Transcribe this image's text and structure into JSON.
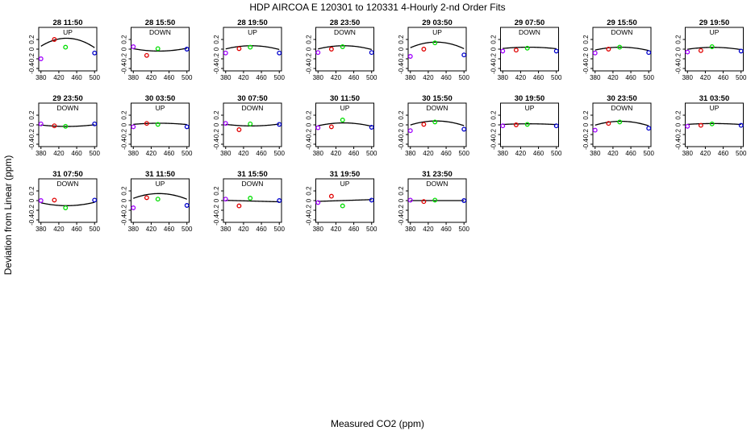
{
  "figure": {
    "title": "HDP   AIRCOA E   120301 to 120331   4-Hourly 2-nd Order Fits",
    "xlabel": "Measured CO2 (ppm)",
    "ylabel": "Deviation from Linear (ppm)"
  },
  "chart_data": {
    "type": "scatter",
    "layout": {
      "rows": 3,
      "cols": 8
    },
    "xlim": [
      375,
      505
    ],
    "ylim": [
      -0.45,
      0.45
    ],
    "xticks": [
      380,
      420,
      460,
      500
    ],
    "yticks": [
      0.2,
      0.0,
      -0.2,
      -0.4
    ],
    "xtick_labels": [
      "380",
      "420",
      "460",
      "500"
    ],
    "ytick_labels": [
      "0.2",
      "0",
      "-0.2",
      "-0.4"
    ],
    "colors": {
      "p1": "#a000ff",
      "p2": "#e00000",
      "p3": "#00dd00",
      "p4": "#0000cc",
      "fit": "#000000"
    },
    "panels": [
      {
        "title": "28 11:50",
        "direction": "UP",
        "points": [
          [
            380,
            -0.2
          ],
          [
            410,
            0.2
          ],
          [
            435,
            0.04
          ],
          [
            500,
            -0.08
          ]
        ],
        "fit": [
          -5e-05,
          0.04375,
          -9.345
        ]
      },
      {
        "title": "28 15:50",
        "direction": "DOWN",
        "points": [
          [
            380,
            0.05
          ],
          [
            410,
            -0.13
          ],
          [
            435,
            0.01
          ],
          [
            500,
            0.0
          ]
        ],
        "fit": [
          1.5e-05,
          -0.01312,
          2.829
        ]
      },
      {
        "title": "28 19:50",
        "direction": "UP",
        "points": [
          [
            380,
            -0.08
          ],
          [
            410,
            0.01
          ],
          [
            435,
            0.04
          ],
          [
            500,
            -0.08
          ]
        ],
        "fit": [
          -2e-05,
          0.0175,
          -3.758
        ]
      },
      {
        "title": "28 23:50",
        "direction": "DOWN",
        "points": [
          [
            380,
            -0.07
          ],
          [
            410,
            0.0
          ],
          [
            435,
            0.05
          ],
          [
            500,
            -0.07
          ]
        ],
        "fit": [
          -2e-05,
          0.0175,
          -3.758
        ]
      },
      {
        "title": "29 03:50",
        "direction": "UP",
        "points": [
          [
            380,
            -0.15
          ],
          [
            410,
            0.0
          ],
          [
            435,
            0.13
          ],
          [
            500,
            -0.12
          ]
        ],
        "fit": [
          -3.5e-05,
          0.03063,
          -6.556
        ]
      },
      {
        "title": "29 07:50",
        "direction": "DOWN",
        "points": [
          [
            380,
            -0.04
          ],
          [
            410,
            -0.02
          ],
          [
            435,
            0.02
          ],
          [
            500,
            -0.04
          ]
        ],
        "fit": [
          -8e-06,
          0.007,
          -1.491
        ]
      },
      {
        "title": "29 15:50",
        "direction": "DOWN",
        "points": [
          [
            380,
            -0.08
          ],
          [
            410,
            0.0
          ],
          [
            435,
            0.04
          ],
          [
            500,
            -0.07
          ]
        ],
        "fit": [
          -1.8e-05,
          0.01575,
          -3.405
        ]
      },
      {
        "title": "29 19:50",
        "direction": "UP",
        "points": [
          [
            380,
            -0.06
          ],
          [
            410,
            -0.03
          ],
          [
            435,
            0.05
          ],
          [
            500,
            -0.04
          ]
        ],
        "fit": [
          -1.2e-05,
          0.0105,
          -2.26
        ]
      },
      {
        "title": "29 23:50",
        "direction": "DOWN",
        "points": [
          [
            380,
            0.02
          ],
          [
            410,
            -0.02
          ],
          [
            435,
            -0.03
          ],
          [
            500,
            0.02
          ]
        ],
        "fit": [
          9e-06,
          -0.007875,
          1.69
        ]
      },
      {
        "title": "30 03:50",
        "direction": "UP",
        "points": [
          [
            380,
            -0.04
          ],
          [
            410,
            0.03
          ],
          [
            435,
            0.01
          ],
          [
            500,
            -0.04
          ]
        ],
        "fit": [
          -7e-06,
          0.006125,
          -1.306
        ]
      },
      {
        "title": "30 07:50",
        "direction": "DOWN",
        "points": [
          [
            380,
            0.03
          ],
          [
            410,
            -0.1
          ],
          [
            435,
            0.02
          ],
          [
            500,
            0.01
          ]
        ],
        "fit": [
          1e-05,
          -0.00875,
          1.892
        ]
      },
      {
        "title": "30 11:50",
        "direction": "UP",
        "points": [
          [
            380,
            -0.06
          ],
          [
            410,
            -0.04
          ],
          [
            435,
            0.1
          ],
          [
            500,
            -0.05
          ]
        ],
        "fit": [
          -1.8e-05,
          0.01575,
          -3.405
        ]
      },
      {
        "title": "30 15:50",
        "direction": "DOWN",
        "points": [
          [
            380,
            -0.12
          ],
          [
            410,
            0.01
          ],
          [
            435,
            0.06
          ],
          [
            500,
            -0.09
          ]
        ],
        "fit": [
          -2.5e-05,
          0.02188,
          -4.707
        ]
      },
      {
        "title": "30 19:50",
        "direction": "UP",
        "points": [
          [
            380,
            -0.02
          ],
          [
            410,
            0.0
          ],
          [
            435,
            0.01
          ],
          [
            500,
            -0.02
          ]
        ],
        "fit": [
          -4e-06,
          0.0035,
          -0.744
        ]
      },
      {
        "title": "30 23:50",
        "direction": "DOWN",
        "points": [
          [
            380,
            -0.11
          ],
          [
            410,
            0.03
          ],
          [
            435,
            0.06
          ],
          [
            500,
            -0.07
          ]
        ],
        "fit": [
          -2.4e-05,
          0.021,
          -4.52
        ]
      },
      {
        "title": "31 03:50",
        "direction": "UP",
        "points": [
          [
            380,
            -0.03
          ],
          [
            410,
            -0.01
          ],
          [
            435,
            0.02
          ],
          [
            500,
            -0.01
          ]
        ],
        "fit": [
          -5e-06,
          0.004375,
          -0.93
        ]
      },
      {
        "title": "31 07:50",
        "direction": "DOWN",
        "points": [
          [
            380,
            0.0
          ],
          [
            410,
            0.01
          ],
          [
            435,
            -0.15
          ],
          [
            500,
            0.01
          ]
        ],
        "fit": [
          1.8e-05,
          -0.01575,
          3.34
        ]
      },
      {
        "title": "31 11:50",
        "direction": "UP",
        "points": [
          [
            380,
            -0.15
          ],
          [
            410,
            0.06
          ],
          [
            435,
            0.03
          ],
          [
            500,
            -0.1
          ]
        ],
        "fit": [
          -3e-05,
          0.02625,
          -5.597
        ]
      },
      {
        "title": "31 15:50",
        "direction": "DOWN",
        "points": [
          [
            380,
            0.03
          ],
          [
            410,
            -0.11
          ],
          [
            435,
            0.05
          ],
          [
            500,
            0.0
          ]
        ],
        "fit": [
          0,
          -0.00025,
          0.1
        ]
      },
      {
        "title": "31 19:50",
        "direction": "UP",
        "points": [
          [
            380,
            -0.04
          ],
          [
            410,
            0.09
          ],
          [
            435,
            -0.11
          ],
          [
            500,
            0.01
          ]
        ],
        "fit": [
          0,
          0.0003,
          -0.13
        ]
      },
      {
        "title": "31 23:50",
        "direction": "DOWN",
        "points": [
          [
            380,
            0.01
          ],
          [
            410,
            -0.02
          ],
          [
            435,
            0.01
          ],
          [
            500,
            0.0
          ]
        ],
        "fit": [
          0,
          0,
          0.0
        ]
      }
    ]
  }
}
